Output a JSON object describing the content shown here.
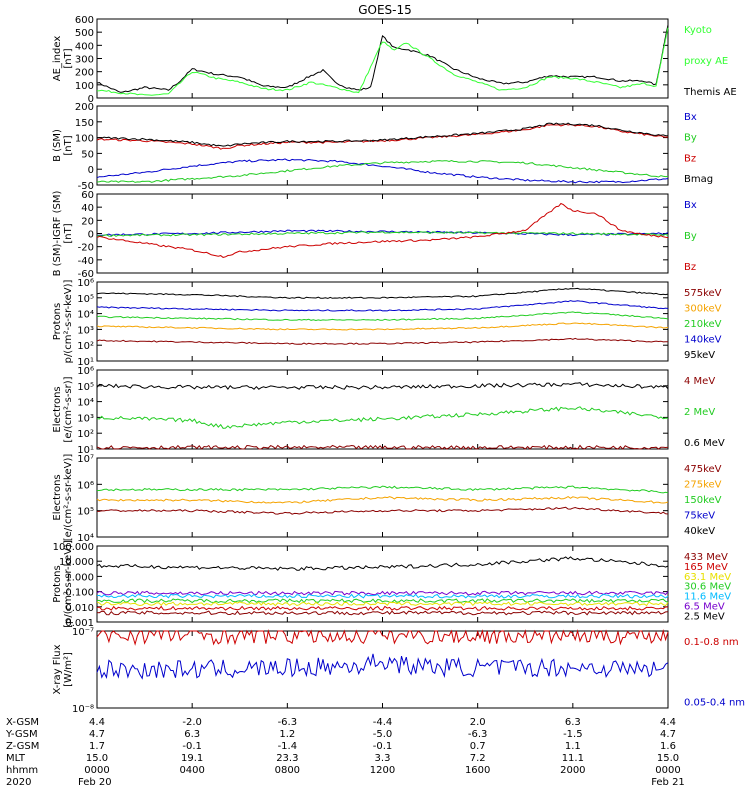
{
  "title": "GOES-15",
  "colors": {
    "black": "#000000",
    "green": "#22cc22",
    "blue": "#0000cc",
    "red": "#cc0000",
    "darkred": "#8b0000",
    "orange": "#f5a300",
    "lightblue": "#1e90ff",
    "cyan": "#00bbff",
    "yellow": "#e8e000",
    "purple": "#7700cc",
    "magenta": "#cc00cc",
    "brightgreen": "#33ff33"
  },
  "chart_data": [
    {
      "type": "line",
      "id": "ae",
      "ylabel": [
        "AE_index",
        "[nT]"
      ],
      "ylim": [
        0,
        600
      ],
      "yticks": [
        "0",
        "100",
        "200",
        "300",
        "400",
        "500",
        "600"
      ],
      "legend": [
        {
          "text": "Kyoto",
          "color": "#33ff33"
        },
        {
          "text": "proxy AE",
          "color": "#33ff33"
        },
        {
          "text": "Themis AE",
          "color": "#000000"
        }
      ],
      "series": [
        {
          "name": "Themis AE",
          "color": "#000000",
          "x": [
            0,
            1,
            2,
            3,
            3.5,
            4,
            5,
            6,
            7,
            8,
            9,
            9.5,
            10,
            10.5,
            11,
            11.5,
            12,
            12.5,
            13,
            14,
            15,
            16,
            17,
            18,
            19,
            20,
            21,
            22,
            23,
            23.5,
            24
          ],
          "y": [
            120,
            40,
            80,
            60,
            130,
            220,
            180,
            160,
            90,
            80,
            170,
            210,
            120,
            80,
            60,
            80,
            470,
            380,
            370,
            320,
            220,
            150,
            110,
            120,
            170,
            160,
            160,
            130,
            130,
            100,
            560
          ]
        },
        {
          "name": "Kyoto proxy AE",
          "color": "#33ff33",
          "x": [
            0,
            1,
            2,
            3,
            4,
            5,
            6,
            7,
            8,
            9,
            10,
            11,
            12,
            12.5,
            13,
            14,
            15,
            16,
            17,
            18,
            19,
            20,
            21,
            22,
            23,
            23.5,
            24
          ],
          "y": [
            60,
            40,
            20,
            30,
            200,
            150,
            120,
            70,
            60,
            120,
            80,
            40,
            430,
            360,
            420,
            300,
            180,
            120,
            60,
            80,
            160,
            150,
            120,
            80,
            110,
            90,
            530
          ]
        }
      ]
    },
    {
      "type": "line",
      "id": "b",
      "ylabel": [
        "B (SM)",
        "[nT]"
      ],
      "ylim": [
        -50,
        200
      ],
      "yticks": [
        "-50",
        "0",
        "50",
        "100",
        "150",
        "200"
      ],
      "legend": [
        {
          "text": "Bx",
          "color": "#0000cc"
        },
        {
          "text": "By",
          "color": "#22cc22"
        },
        {
          "text": "Bz",
          "color": "#cc0000"
        },
        {
          "text": "Bmag",
          "color": "#000000"
        }
      ],
      "series": [
        {
          "name": "Bx",
          "color": "#0000cc",
          "x": [
            0,
            2,
            4,
            6,
            8,
            10,
            12,
            14,
            16,
            18,
            20,
            22,
            24
          ],
          "y": [
            -25,
            -10,
            10,
            25,
            30,
            25,
            10,
            -10,
            -25,
            -35,
            -40,
            -40,
            -30
          ]
        },
        {
          "name": "By",
          "color": "#22cc22",
          "x": [
            0,
            2,
            4,
            6,
            8,
            10,
            12,
            14,
            16,
            18,
            20,
            22,
            24
          ],
          "y": [
            -40,
            -40,
            -30,
            -20,
            -5,
            10,
            20,
            25,
            25,
            20,
            5,
            -10,
            -25
          ]
        },
        {
          "name": "Bz",
          "color": "#cc0000",
          "x": [
            0,
            2,
            4,
            5.3,
            6,
            8,
            10,
            12,
            14,
            16,
            18,
            19,
            20,
            21,
            22,
            24
          ],
          "y": [
            95,
            90,
            80,
            65,
            75,
            85,
            85,
            90,
            100,
            110,
            125,
            140,
            140,
            135,
            120,
            100
          ]
        },
        {
          "name": "Bmag",
          "color": "#000000",
          "x": [
            0,
            2,
            4,
            5.3,
            6,
            8,
            10,
            12,
            14,
            16,
            18,
            19,
            20,
            21,
            22,
            24
          ],
          "y": [
            100,
            95,
            85,
            72,
            80,
            88,
            88,
            92,
            103,
            113,
            128,
            143,
            143,
            138,
            124,
            104
          ]
        }
      ]
    },
    {
      "type": "line",
      "id": "db",
      "ylabel": [
        "B (SM)-IGRF (SM)",
        "[nT]"
      ],
      "ylim": [
        -60,
        60
      ],
      "yticks": [
        "-60",
        "-40",
        "-20",
        "0",
        "20",
        "40",
        "60"
      ],
      "legend": [
        {
          "text": "Bx",
          "color": "#0000cc"
        },
        {
          "text": "By",
          "color": "#22cc22"
        },
        {
          "text": "Bz",
          "color": "#cc0000"
        }
      ],
      "series": [
        {
          "name": "Bx",
          "color": "#0000cc",
          "x": [
            0,
            4,
            8,
            12,
            16,
            20,
            24
          ],
          "y": [
            -2,
            0,
            4,
            3,
            1,
            -2,
            0
          ]
        },
        {
          "name": "By",
          "color": "#22cc22",
          "x": [
            0,
            4,
            8,
            12,
            16,
            20,
            24
          ],
          "y": [
            -3,
            -2,
            0,
            2,
            1,
            0,
            -2
          ]
        },
        {
          "name": "Bz",
          "color": "#cc0000",
          "x": [
            0,
            2,
            4,
            5.3,
            6,
            8,
            10,
            12,
            14,
            16,
            18,
            19.5,
            20,
            21,
            22,
            23,
            24
          ],
          "y": [
            -5,
            -15,
            -25,
            -35,
            -28,
            -20,
            -15,
            -12,
            -10,
            -5,
            5,
            45,
            35,
            30,
            5,
            -2,
            -5
          ]
        }
      ]
    },
    {
      "type": "line",
      "id": "protons1",
      "log": true,
      "ylabel": [
        "Protons",
        "p/(cm²-s-sr-keV)]"
      ],
      "ylim": [
        1,
        6
      ],
      "yticks": [
        "10¹",
        "10²",
        "10³",
        "10⁴",
        "10⁵",
        "10⁶"
      ],
      "legend": [
        {
          "text": "575keV",
          "color": "#8b0000"
        },
        {
          "text": "300keV",
          "color": "#f5a300"
        },
        {
          "text": "210keV",
          "color": "#22cc22"
        },
        {
          "text": "140keV",
          "color": "#0000cc"
        },
        {
          "text": "95keV",
          "color": "#000000"
        }
      ],
      "series": [
        {
          "name": "95keV",
          "color": "#000000",
          "x": [
            0,
            4,
            8,
            12,
            16,
            20,
            24
          ],
          "y": [
            5.3,
            5.2,
            5.0,
            5.0,
            5.1,
            5.6,
            5.2
          ]
        },
        {
          "name": "140keV",
          "color": "#0000cc",
          "x": [
            0,
            4,
            8,
            12,
            16,
            20,
            24
          ],
          "y": [
            4.4,
            4.3,
            4.2,
            4.2,
            4.3,
            4.8,
            4.3
          ]
        },
        {
          "name": "210keV",
          "color": "#22cc22",
          "x": [
            0,
            4,
            8,
            12,
            16,
            20,
            24
          ],
          "y": [
            3.8,
            3.7,
            3.6,
            3.6,
            3.7,
            4.1,
            3.7
          ]
        },
        {
          "name": "300keV",
          "color": "#f5a300",
          "x": [
            0,
            4,
            8,
            12,
            16,
            20,
            24
          ],
          "y": [
            3.2,
            3.1,
            3.0,
            3.0,
            3.1,
            3.4,
            3.1
          ]
        },
        {
          "name": "575keV",
          "color": "#8b0000",
          "x": [
            0,
            4,
            8,
            12,
            16,
            20,
            24
          ],
          "y": [
            2.3,
            2.2,
            2.1,
            2.1,
            2.2,
            2.4,
            2.2
          ]
        }
      ]
    },
    {
      "type": "line",
      "id": "electrons1",
      "log": true,
      "ylabel": [
        "Electrons",
        "[e/(cm²-s-sr)]"
      ],
      "ylim": [
        1,
        6
      ],
      "yticks": [
        "10¹",
        "10²",
        "10³",
        "10⁴",
        "10⁵",
        "10⁶"
      ],
      "legend": [
        {
          "text": "4 MeV",
          "color": "#8b0000"
        },
        {
          "text": "2 MeV",
          "color": "#22cc22"
        },
        {
          "text": "0.6 MeV",
          "color": "#000000"
        }
      ],
      "series": [
        {
          "name": "0.6 MeV",
          "color": "#000000",
          "x": [
            0,
            4,
            8,
            12,
            16,
            20,
            24
          ],
          "y": [
            5.0,
            4.9,
            4.9,
            4.9,
            5.0,
            5.1,
            4.9
          ]
        },
        {
          "name": "2 MeV",
          "color": "#22cc22",
          "x": [
            0,
            4,
            5.3,
            8,
            12,
            16,
            20,
            24
          ],
          "y": [
            3.0,
            2.8,
            2.4,
            2.7,
            2.9,
            3.2,
            3.6,
            3.0
          ]
        },
        {
          "name": "4 MeV",
          "color": "#8b0000",
          "x": [
            0,
            24
          ],
          "y": [
            1.1,
            1.1
          ]
        }
      ]
    },
    {
      "type": "line",
      "id": "electrons2",
      "log": true,
      "ylabel": [
        "Electrons",
        "[e/(cm²-s-sr-keV)]"
      ],
      "ylim": [
        4,
        7
      ],
      "yticks": [
        "10⁴",
        "10⁵",
        "10⁶",
        "10⁷"
      ],
      "legend": [
        {
          "text": "475keV",
          "color": "#8b0000"
        },
        {
          "text": "275keV",
          "color": "#f5a300"
        },
        {
          "text": "150keV",
          "color": "#22cc22"
        },
        {
          "text": "75keV",
          "color": "#0000cc"
        },
        {
          "text": "40keV",
          "color": "#000000"
        }
      ],
      "series": [
        {
          "name": "150keV",
          "color": "#22cc22",
          "x": [
            0,
            4,
            8,
            12,
            16,
            20,
            24
          ],
          "y": [
            5.8,
            5.8,
            5.8,
            5.9,
            5.8,
            5.9,
            5.7
          ]
        },
        {
          "name": "275keV",
          "color": "#f5a300",
          "x": [
            0,
            4,
            8,
            12,
            16,
            20,
            24
          ],
          "y": [
            5.4,
            5.4,
            5.3,
            5.5,
            5.4,
            5.5,
            5.3
          ]
        },
        {
          "name": "475keV",
          "color": "#8b0000",
          "x": [
            0,
            4,
            8,
            12,
            16,
            20,
            24
          ],
          "y": [
            5.0,
            5.0,
            4.9,
            5.0,
            5.0,
            5.1,
            4.9
          ]
        }
      ]
    },
    {
      "type": "line",
      "id": "protons2",
      "log": true,
      "ylabel": [
        "Protons",
        "[p/(cm²-s-sr-keV)]"
      ],
      "ylim": [
        -3,
        2
      ],
      "yticks": [
        "0.001",
        "0.010",
        "0.100",
        "1.000",
        "10.000",
        "100.000"
      ],
      "legend": [
        {
          "text": "433 MeV",
          "color": "#8b0000"
        },
        {
          "text": "165 MeV",
          "color": "#cc0000"
        },
        {
          "text": "63.1 MeV",
          "color": "#e8e000"
        },
        {
          "text": "30.6 MeV",
          "color": "#22cc22"
        },
        {
          "text": "11.6 MeV",
          "color": "#00bbff"
        },
        {
          "text": "6.5 MeV",
          "color": "#7700cc"
        },
        {
          "text": "2.5 MeV",
          "color": "#000000"
        }
      ],
      "series": [
        {
          "name": "2.5 MeV",
          "color": "#000000",
          "x": [
            0,
            4,
            8,
            12,
            16,
            20,
            24
          ],
          "y": [
            0.7,
            0.6,
            0.5,
            0.6,
            0.8,
            1.2,
            0.7
          ]
        },
        {
          "name": "6.5 MeV",
          "color": "#7700cc",
          "x": [
            0,
            24
          ],
          "y": [
            -1.1,
            -1.1
          ]
        },
        {
          "name": "11.6 MeV",
          "color": "#00bbff",
          "x": [
            0,
            24
          ],
          "y": [
            -1.3,
            -1.3
          ]
        },
        {
          "name": "30.6 MeV",
          "color": "#22cc22",
          "x": [
            0,
            24
          ],
          "y": [
            -1.6,
            -1.6
          ]
        },
        {
          "name": "63.1 MeV",
          "color": "#e8e000",
          "x": [
            0,
            24
          ],
          "y": [
            -1.8,
            -1.8
          ]
        },
        {
          "name": "165 MeV",
          "color": "#cc0000",
          "x": [
            0,
            24
          ],
          "y": [
            -2.1,
            -2.1
          ]
        },
        {
          "name": "433 MeV",
          "color": "#8b0000",
          "x": [
            0,
            24
          ],
          "y": [
            -2.4,
            -2.4
          ]
        }
      ]
    },
    {
      "type": "line",
      "id": "xray",
      "log": true,
      "ylabel": [
        "X-ray Flux",
        "[W/m²]"
      ],
      "ylim": [
        -8,
        -7
      ],
      "yticks": [
        "10⁻⁸",
        "10⁻⁷"
      ],
      "legend": [
        {
          "text": "0.1-0.8 nm",
          "color": "#cc0000"
        },
        {
          "text": "0.05-0.4 nm",
          "color": "#0000cc"
        }
      ],
      "series": [
        {
          "name": "0.1-0.8 nm",
          "color": "#cc0000",
          "x": [
            0,
            24
          ],
          "y": [
            -7.05,
            -7.05
          ]
        },
        {
          "name": "0.05-0.4 nm",
          "color": "#0000cc",
          "x": [
            0,
            4,
            8,
            11,
            12,
            13,
            16,
            20,
            24
          ],
          "y": [
            -7.5,
            -7.5,
            -7.48,
            -7.45,
            -7.38,
            -7.45,
            -7.48,
            -7.47,
            -7.5
          ]
        }
      ]
    }
  ],
  "ephemeris": {
    "labels": [
      "X-GSM",
      "Y-GSM",
      "Z-GSM",
      "MLT",
      "hhmm",
      "2020"
    ],
    "rows": [
      [
        "4.4",
        "-2.0",
        "-6.3",
        "-4.4",
        "2.0",
        "6.3",
        "4.4"
      ],
      [
        "4.7",
        "6.3",
        "1.2",
        "-5.0",
        "-6.3",
        "-1.5",
        "4.7"
      ],
      [
        "1.7",
        "-0.1",
        "-1.4",
        "-0.1",
        "0.7",
        "1.1",
        "1.6"
      ],
      [
        "15.0",
        "19.1",
        "23.3",
        "3.3",
        "7.2",
        "11.1",
        "15.0"
      ],
      [
        "0000",
        "0400",
        "0800",
        "1200",
        "1600",
        "2000",
        "0000"
      ],
      [
        "Feb 20",
        "",
        "",
        "",
        "",
        "",
        "Feb 21"
      ]
    ]
  }
}
